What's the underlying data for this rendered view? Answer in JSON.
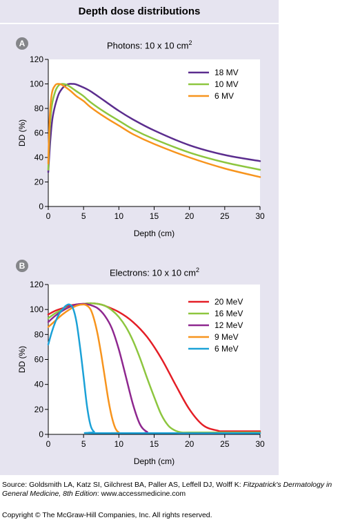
{
  "figure": {
    "title": "Depth dose distributions",
    "panels": [
      {
        "letter": "A",
        "title": "Photons: 10 x 10 cm",
        "title_sup": "2"
      },
      {
        "letter": "B",
        "title": "Electrons: 10 x 10 cm",
        "title_sup": "2"
      }
    ]
  },
  "footer": {
    "source_prefix": "Source: Goldsmith LA, Katz SI, Gilchrest BA, Paller AS, Leffell DJ, Wolff K: ",
    "source_book": "Fitzpatrick's Dermatology in General Medicine, 8th Edition",
    "source_suffix": ": www.accessmedicine.com",
    "copyright": "Copyright © The McGraw-Hill Companies, Inc. All rights reserved."
  },
  "chart_data": [
    {
      "type": "line",
      "title": "Photons: 10 x 10 cm2",
      "xlabel": "Depth (cm)",
      "ylabel": "DD (%)",
      "xlim": [
        0,
        30
      ],
      "ylim": [
        0,
        120
      ],
      "xticks": [
        0,
        5,
        10,
        15,
        20,
        25,
        30
      ],
      "yticks": [
        0,
        20,
        40,
        60,
        80,
        100,
        120
      ],
      "grid": false,
      "legend": "top-right",
      "series": [
        {
          "name": "18 MV",
          "color": "#5b2d8e",
          "x": [
            0,
            0.3,
            0.6,
            1,
            1.5,
            2,
            2.5,
            3,
            3.5,
            4,
            5,
            6,
            8,
            10,
            12,
            15,
            20,
            25,
            30
          ],
          "y": [
            28,
            55,
            72,
            83,
            92,
            96.5,
            99,
            100,
            100,
            99.5,
            97,
            94,
            86,
            78,
            71,
            62,
            50,
            42,
            37
          ]
        },
        {
          "name": "10 MV",
          "color": "#8dc63f",
          "x": [
            0,
            0.2,
            0.5,
            1,
            1.5,
            2,
            2.5,
            3,
            4,
            5,
            6,
            8,
            10,
            12,
            15,
            20,
            25,
            30
          ],
          "y": [
            30,
            62,
            82,
            94,
            99,
            100,
            99.5,
            98,
            94,
            90,
            85,
            77,
            70,
            63,
            55,
            44,
            36,
            30
          ]
        },
        {
          "name": "6 MV",
          "color": "#f7941d",
          "x": [
            0,
            0.2,
            0.5,
            1,
            1.5,
            2,
            3,
            4,
            5,
            6,
            8,
            10,
            12,
            15,
            20,
            25,
            30
          ],
          "y": [
            35,
            72,
            92,
            99,
            100,
            99,
            95,
            90,
            86,
            81,
            73,
            66,
            59,
            51,
            40,
            31,
            24
          ]
        }
      ]
    },
    {
      "type": "line",
      "title": "Electrons: 10 x 10 cm2",
      "xlabel": "Depth (cm)",
      "ylabel": "DD (%)",
      "xlim": [
        0,
        30
      ],
      "ylim": [
        0,
        120
      ],
      "xticks": [
        0,
        5,
        10,
        15,
        20,
        25,
        30
      ],
      "yticks": [
        0,
        20,
        40,
        60,
        80,
        100,
        120
      ],
      "grid": false,
      "legend": "top-right",
      "series": [
        {
          "name": "20 MeV",
          "color": "#e41e26",
          "x": [
            0,
            1,
            2,
            3,
            4,
            5,
            6,
            7,
            8,
            10,
            12,
            14,
            16,
            18,
            20,
            22,
            24,
            25,
            30
          ],
          "y": [
            96,
            99,
            101,
            103,
            104,
            104.5,
            105,
            104.5,
            103,
            98,
            90,
            78,
            61,
            40,
            20,
            7,
            3,
            2.5,
            2.5
          ]
        },
        {
          "name": "16 MeV",
          "color": "#8dc63f",
          "x": [
            0,
            1,
            2,
            3,
            4,
            5,
            6,
            7,
            8,
            9,
            10,
            11,
            12,
            13,
            14,
            15,
            16,
            17,
            18,
            19,
            20,
            30
          ],
          "y": [
            93,
            97,
            100,
            102,
            103.5,
            104.5,
            105,
            104.5,
            103,
            99.5,
            94,
            86,
            75,
            61,
            45,
            30,
            16,
            7,
            3,
            1.5,
            1.5,
            1.5
          ]
        },
        {
          "name": "12 MeV",
          "color": "#8e278f",
          "x": [
            0,
            1,
            2,
            3,
            4,
            5,
            6,
            7,
            8,
            9,
            10,
            11,
            12,
            13,
            14,
            15,
            30
          ],
          "y": [
            90,
            95,
            99,
            102,
            104,
            104.5,
            103.5,
            101,
            95,
            85,
            68,
            46,
            24,
            8,
            2,
            1,
            1
          ]
        },
        {
          "name": "9 MeV",
          "color": "#f7941d",
          "x": [
            0,
            1,
            2,
            3,
            4,
            5,
            5.5,
            6,
            6.5,
            7,
            7.5,
            8,
            8.5,
            9,
            9.5,
            10,
            10.5,
            30
          ],
          "y": [
            86,
            91,
            96,
            100,
            103,
            104,
            103,
            100,
            92,
            80,
            64,
            46,
            28,
            14,
            5,
            1.5,
            1,
            1
          ]
        },
        {
          "name": "6 MeV",
          "color": "#1ba1d7",
          "x": [
            0,
            0.5,
            1,
            1.5,
            2,
            2.5,
            3,
            3.5,
            4,
            4.5,
            5,
            5.5,
            6,
            6.5,
            7,
            30
          ],
          "y": [
            72,
            82,
            90,
            96,
            100,
            103,
            104,
            101,
            90,
            70,
            46,
            22,
            7,
            2,
            1,
            1
          ]
        }
      ]
    }
  ]
}
